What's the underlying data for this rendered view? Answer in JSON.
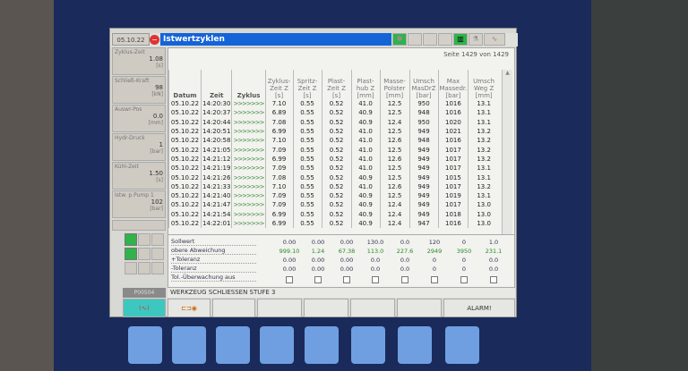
{
  "window": {
    "date": "05.10.22",
    "title": "Istwertzyklen",
    "page": "Seite 1429 von 1429"
  },
  "colors": {
    "title_bar": "#1464d8",
    "status_green": "#2fb34a",
    "bezel": "#1a2a5a"
  },
  "sidebar": [
    {
      "label": "Zyklus-Zeit",
      "value": "1.08",
      "unit": "[s]"
    },
    {
      "label": "Schließ-Kraft",
      "value": "98",
      "unit": "[kN]"
    },
    {
      "label": "Auswr-Pos",
      "value": "0.0",
      "unit": "[mm]"
    },
    {
      "label": "Hydr-Druck",
      "value": "1",
      "unit": "[bar]"
    },
    {
      "label": "Kühl-Zeit",
      "value": "1.50",
      "unit": "[s]"
    },
    {
      "label": "Istw. p.Pump 1",
      "value": "102",
      "unit": "[bar]"
    }
  ],
  "code": "P00504",
  "table": {
    "headers": [
      [
        "Datum"
      ],
      [
        "Zeit"
      ],
      [
        "Zyklus"
      ],
      [
        "Zyklus-",
        "Zeit Z",
        "[s]"
      ],
      [
        "Spritz-",
        "Zeit Z",
        "[s]"
      ],
      [
        "Plast-",
        "Zeit Z",
        "[s]"
      ],
      [
        "Plast-",
        "hub Z",
        "[mm]"
      ],
      [
        "Masse-",
        "Polster",
        "[mm]"
      ],
      [
        "Umsch",
        "MasDrZ",
        "[bar]"
      ],
      [
        "Max",
        "Massedr.",
        "[bar]"
      ],
      [
        "Umsch",
        "Weg Z",
        "[mm]"
      ]
    ],
    "rows": [
      [
        "05.10.22",
        "14:20:30",
        ">>>>>>>",
        "7.10",
        "0.55",
        "0.52",
        "41.0",
        "12.5",
        "950",
        "1016",
        "13.1"
      ],
      [
        "05.10.22",
        "14:20:37",
        ">>>>>>>",
        "6.89",
        "0.55",
        "0.52",
        "40.9",
        "12.5",
        "948",
        "1016",
        "13.1"
      ],
      [
        "05.10.22",
        "14:20:44",
        ">>>>>>>",
        "7.08",
        "0.55",
        "0.52",
        "40.9",
        "12.4",
        "950",
        "1020",
        "13.1"
      ],
      [
        "05.10.22",
        "14:20:51",
        ">>>>>>>",
        "6.99",
        "0.55",
        "0.52",
        "41.0",
        "12.5",
        "949",
        "1021",
        "13.2"
      ],
      [
        "05.10.22",
        "14:20:58",
        ">>>>>>>",
        "7.10",
        "0.55",
        "0.52",
        "41.0",
        "12.6",
        "948",
        "1016",
        "13.2"
      ],
      [
        "05.10.22",
        "14:21:05",
        ">>>>>>>",
        "7.09",
        "0.55",
        "0.52",
        "41.0",
        "12.5",
        "949",
        "1017",
        "13.2"
      ],
      [
        "05.10.22",
        "14:21:12",
        ">>>>>>>",
        "6.99",
        "0.55",
        "0.52",
        "41.0",
        "12.6",
        "949",
        "1017",
        "13.2"
      ],
      [
        "05.10.22",
        "14:21:19",
        ">>>>>>>",
        "7.09",
        "0.55",
        "0.52",
        "41.0",
        "12.5",
        "949",
        "1017",
        "13.1"
      ],
      [
        "05.10.22",
        "14:21:26",
        ">>>>>>>",
        "7.08",
        "0.55",
        "0.52",
        "40.9",
        "12.5",
        "949",
        "1015",
        "13.1"
      ],
      [
        "05.10.22",
        "14:21:33",
        ">>>>>>>",
        "7.10",
        "0.55",
        "0.52",
        "41.0",
        "12.6",
        "949",
        "1017",
        "13.2"
      ],
      [
        "05.10.22",
        "14:21:40",
        ">>>>>>>",
        "7.09",
        "0.55",
        "0.52",
        "40.9",
        "12.5",
        "949",
        "1019",
        "13.1"
      ],
      [
        "05.10.22",
        "14:21:47",
        ">>>>>>>",
        "7.09",
        "0.55",
        "0.52",
        "40.9",
        "12.4",
        "949",
        "1017",
        "13.0"
      ],
      [
        "05.10.22",
        "14:21:54",
        ">>>>>>>",
        "6.99",
        "0.55",
        "0.52",
        "40.9",
        "12.4",
        "949",
        "1018",
        "13.0"
      ],
      [
        "05.10.22",
        "14:22:01",
        ">>>>>>>",
        "6.99",
        "0.55",
        "0.52",
        "40.9",
        "12.4",
        "947",
        "1016",
        "13.0"
      ]
    ]
  },
  "limits": {
    "labels": [
      "Sollwert",
      "obere Abweichung",
      "+Toleranz",
      "-Toleranz",
      "Tol.-Überwachung aus"
    ],
    "rows": [
      [
        "0.00",
        "0.00",
        "0.00",
        "130.0",
        "0.0",
        "120",
        "0",
        "1.0"
      ],
      [
        "999.10",
        "1.24",
        "67.38",
        "113.0",
        "227.6",
        "2949",
        "3950",
        "231.1"
      ],
      [
        "0.00",
        "0.00",
        "0.00",
        "0.0",
        "0.0",
        "0",
        "0",
        "0.0"
      ],
      [
        "0.00",
        "0.00",
        "0.00",
        "0.0",
        "0.0",
        "0",
        "0",
        "0.0"
      ]
    ]
  },
  "message": "WERKZEUG SCHLIESSEN STUFE 3",
  "softkeys": {
    "alarm": "ALARM!"
  }
}
